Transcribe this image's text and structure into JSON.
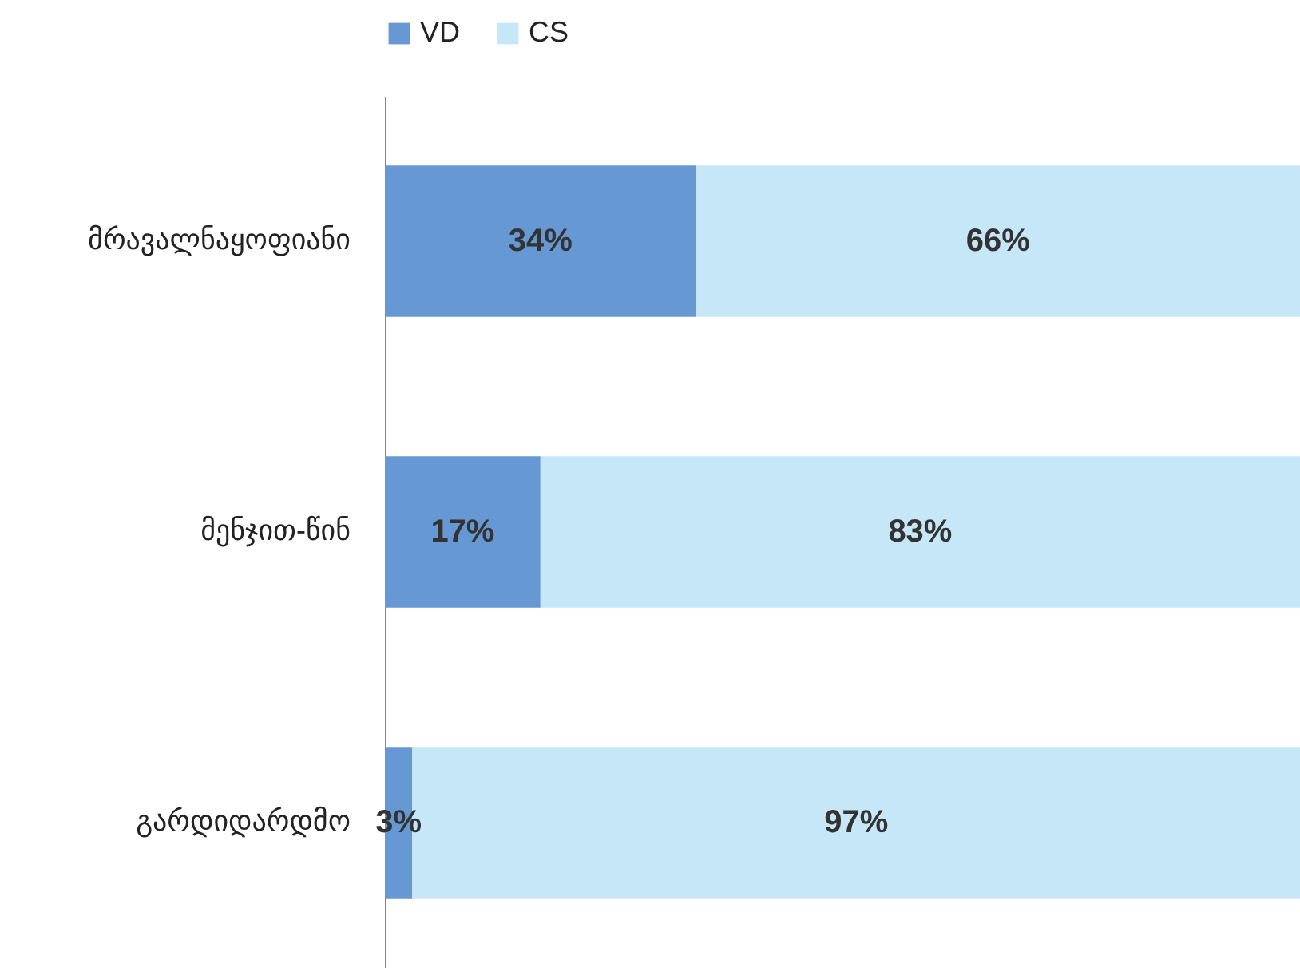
{
  "chart_data": {
    "type": "bar",
    "orientation": "horizontal",
    "stacked": true,
    "legend": "top",
    "grid": false,
    "categories": [
      "მრავალნაყოფიანი",
      "მენჯით-წინ",
      "გარდიდარდმო"
    ],
    "series": [
      {
        "name": "VD",
        "color": "#6699d3",
        "values": [
          34,
          17,
          3
        ],
        "value_labels": [
          "34%",
          "17%",
          "3%"
        ]
      },
      {
        "name": "CS",
        "color": "#c6e7f8",
        "values": [
          66,
          83,
          97
        ],
        "value_labels": [
          "66%",
          "83%",
          "97%"
        ]
      }
    ]
  }
}
